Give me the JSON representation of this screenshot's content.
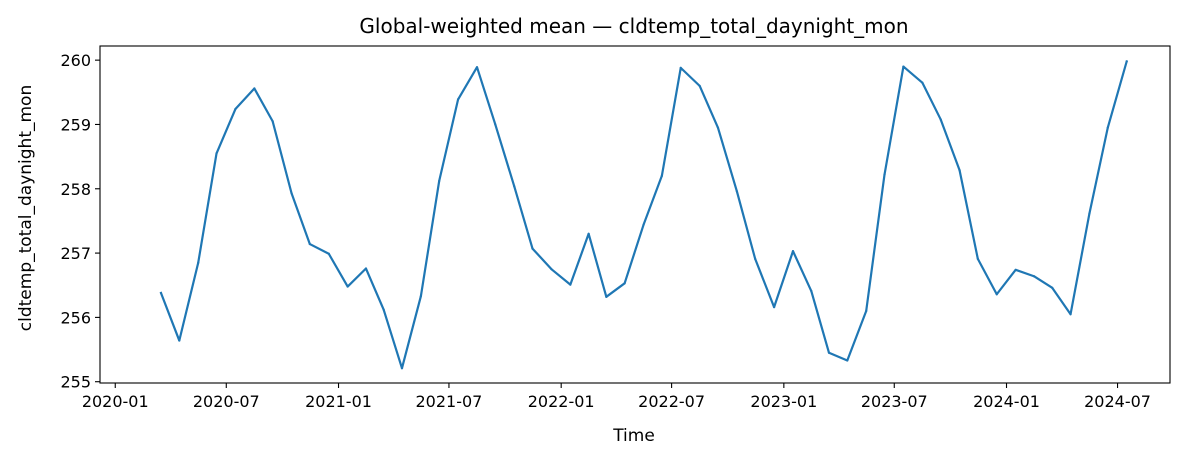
{
  "chart_data": {
    "type": "line",
    "title": "Global-weighted mean — cldtemp_total_daynight_mon",
    "xlabel": "Time",
    "ylabel": "cldtemp_total_daynight_mon",
    "x_type": "date",
    "xlim": [
      "2019-12-07",
      "2024-09-25"
    ],
    "ylim": [
      254.98,
      260.22
    ],
    "x_ticks": [
      "2020-01-01",
      "2020-07-01",
      "2021-01-01",
      "2021-07-01",
      "2022-01-01",
      "2022-07-01",
      "2023-01-01",
      "2023-07-01",
      "2024-01-01",
      "2024-07-01"
    ],
    "x_tick_labels": [
      "2020-01",
      "2020-07",
      "2021-01",
      "2021-07",
      "2022-01",
      "2022-07",
      "2023-01",
      "2023-07",
      "2024-01",
      "2024-07"
    ],
    "y_ticks": [
      255,
      256,
      257,
      258,
      259,
      260
    ],
    "y_tick_labels": [
      "255",
      "256",
      "257",
      "258",
      "259",
      "260"
    ],
    "grid": false,
    "series": [
      {
        "color": "#1f77b4",
        "x": [
          "2020-03-16",
          "2020-04-15",
          "2020-05-16",
          "2020-06-15",
          "2020-07-16",
          "2020-08-16",
          "2020-09-15",
          "2020-10-16",
          "2020-11-15",
          "2020-12-16",
          "2021-01-16",
          "2021-02-15",
          "2021-03-16",
          "2021-04-15",
          "2021-05-16",
          "2021-06-15",
          "2021-07-16",
          "2021-08-16",
          "2021-09-15",
          "2021-10-16",
          "2021-11-15",
          "2021-12-16",
          "2022-01-16",
          "2022-02-15",
          "2022-03-16",
          "2022-04-15",
          "2022-05-16",
          "2022-06-15",
          "2022-07-16",
          "2022-08-16",
          "2022-09-15",
          "2022-10-16",
          "2022-11-15",
          "2022-12-16",
          "2023-01-16",
          "2023-02-15",
          "2023-03-16",
          "2023-04-15",
          "2023-05-16",
          "2023-06-15",
          "2023-07-16",
          "2023-08-16",
          "2023-09-15",
          "2023-10-16",
          "2023-11-15",
          "2023-12-16",
          "2024-01-16",
          "2024-02-15",
          "2024-03-16",
          "2024-04-15",
          "2024-05-16",
          "2024-06-15",
          "2024-07-16"
        ],
        "values": [
          256.38,
          255.64,
          256.85,
          258.55,
          259.24,
          259.56,
          259.05,
          257.93,
          257.14,
          256.99,
          256.48,
          256.76,
          256.12,
          255.21,
          256.33,
          258.12,
          259.39,
          259.89,
          259.0,
          258.04,
          257.07,
          256.75,
          256.51,
          257.3,
          256.32,
          256.53,
          257.44,
          258.2,
          259.88,
          259.6,
          258.95,
          257.96,
          256.91,
          256.16,
          257.03,
          256.41,
          255.45,
          255.33,
          256.1,
          258.22,
          259.9,
          259.65,
          259.08,
          258.29,
          256.91,
          256.36,
          256.74,
          256.64,
          256.46,
          256.05,
          257.62,
          258.95,
          259.98
        ]
      }
    ]
  }
}
